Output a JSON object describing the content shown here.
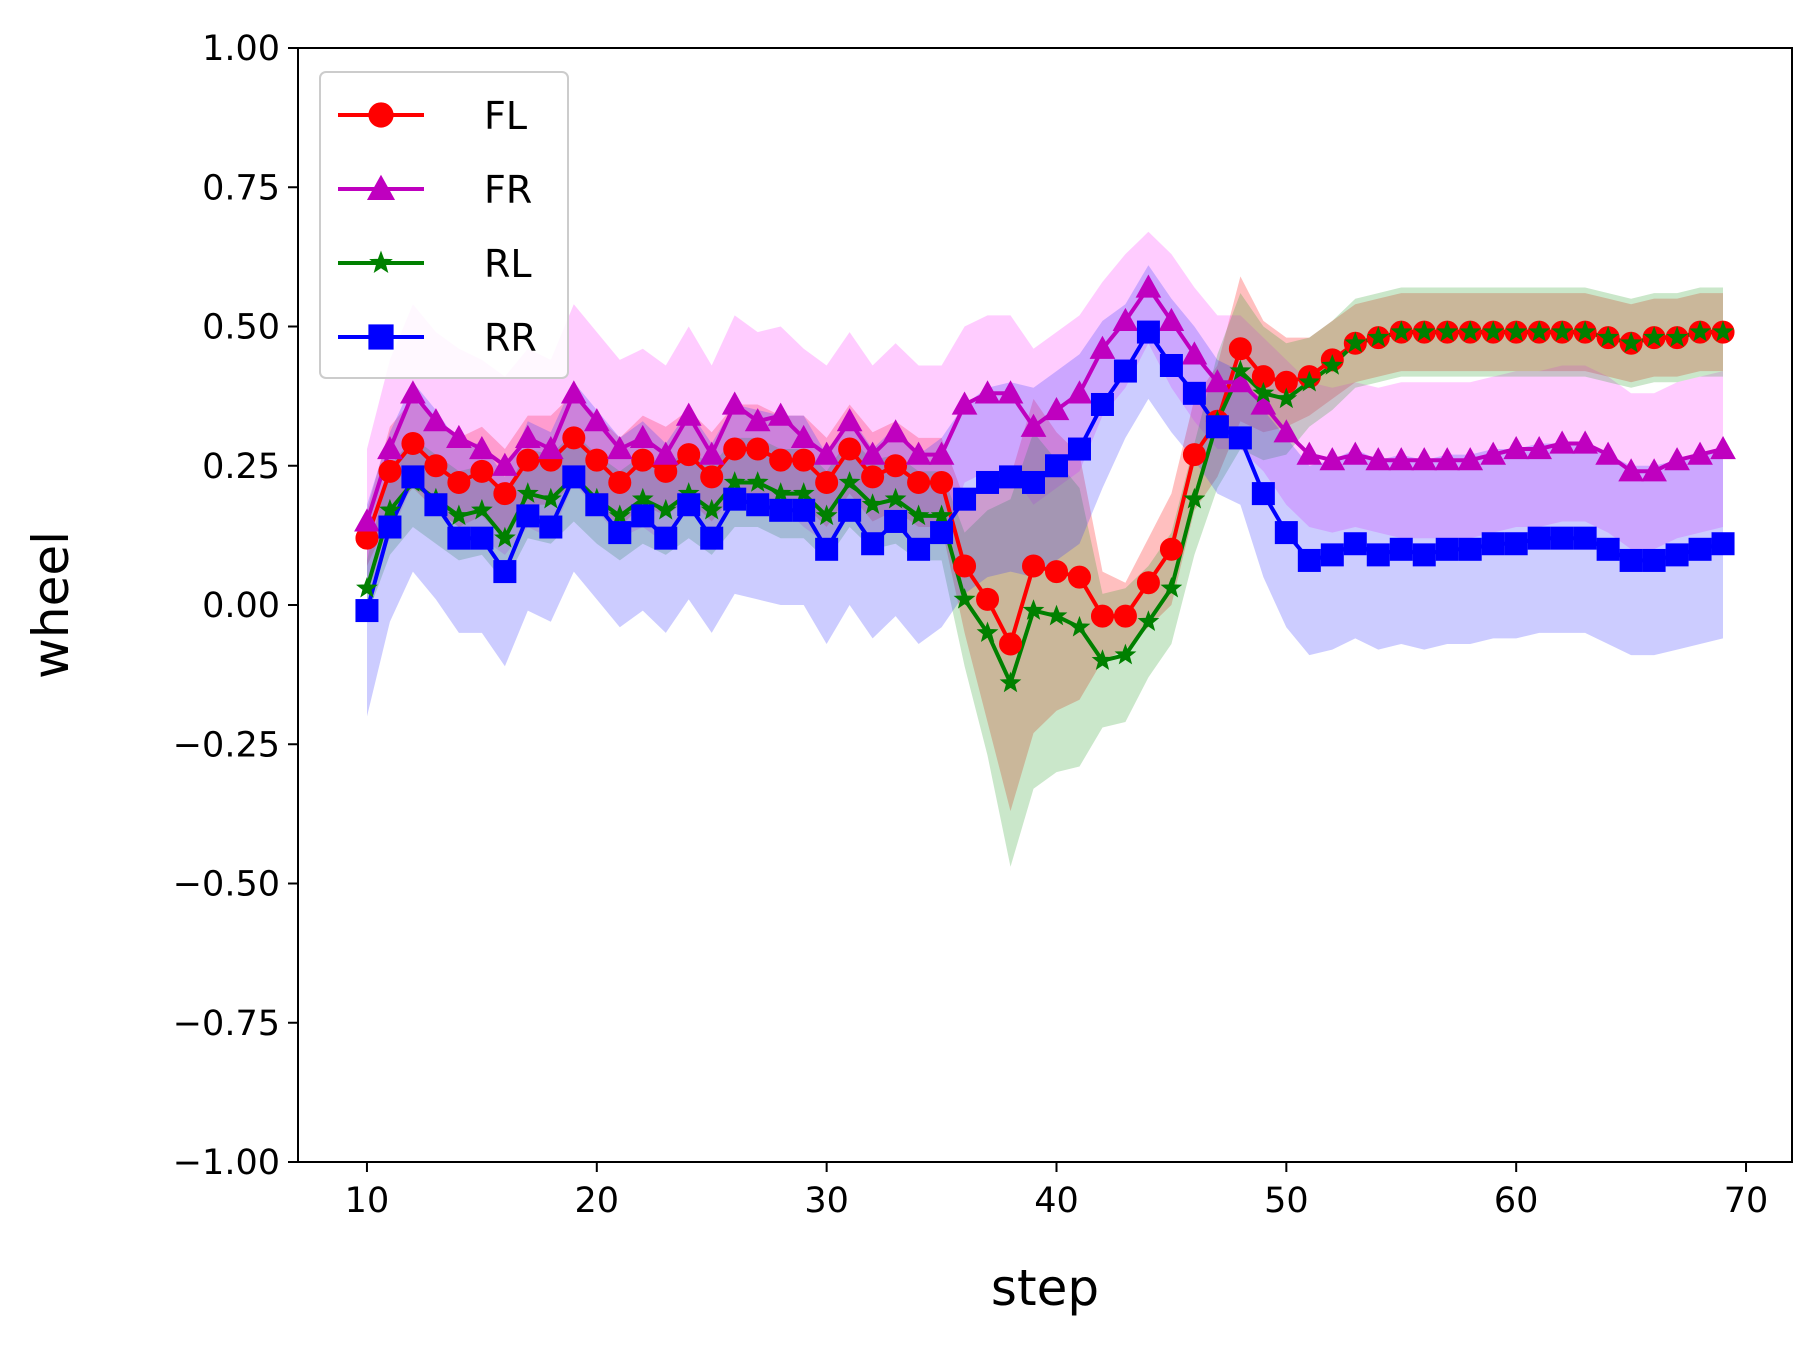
{
  "chart_data": {
    "type": "line",
    "title": "",
    "xlabel": "step",
    "ylabel": "wheel",
    "xlim": [
      7,
      72
    ],
    "ylim": [
      -1.0,
      1.0
    ],
    "x_ticks": [
      10,
      20,
      30,
      40,
      50,
      60,
      70
    ],
    "x_tick_labels": [
      "10",
      "20",
      "30",
      "40",
      "50",
      "60",
      "70"
    ],
    "y_ticks": [
      -1.0,
      -0.75,
      -0.5,
      -0.25,
      0.0,
      0.25,
      0.5,
      0.75,
      1.0
    ],
    "y_tick_labels": [
      "−1.00",
      "−0.75",
      "−0.50",
      "−0.25",
      "0.00",
      "0.25",
      "0.50",
      "0.75",
      "1.00"
    ],
    "grid": false,
    "legend_position": "top-left",
    "x": [
      10,
      11,
      12,
      13,
      14,
      15,
      16,
      17,
      18,
      19,
      20,
      21,
      22,
      23,
      24,
      25,
      26,
      27,
      28,
      29,
      30,
      31,
      32,
      33,
      34,
      35,
      36,
      37,
      38,
      39,
      40,
      41,
      42,
      43,
      44,
      45,
      46,
      47,
      48,
      49,
      50,
      51,
      52,
      53,
      54,
      55,
      56,
      57,
      58,
      59,
      60,
      61,
      62,
      63,
      64,
      65,
      66,
      67,
      68,
      69
    ],
    "series": [
      {
        "name": "FL",
        "color": "#ff0000",
        "marker": "circle",
        "values": [
          0.12,
          0.24,
          0.29,
          0.25,
          0.22,
          0.24,
          0.2,
          0.26,
          0.26,
          0.3,
          0.26,
          0.22,
          0.26,
          0.24,
          0.27,
          0.23,
          0.28,
          0.28,
          0.26,
          0.26,
          0.22,
          0.28,
          0.23,
          0.25,
          0.22,
          0.22,
          0.07,
          0.01,
          -0.07,
          0.07,
          0.06,
          0.05,
          -0.02,
          -0.02,
          0.04,
          0.1,
          0.27,
          0.33,
          0.46,
          0.41,
          0.4,
          0.41,
          0.44,
          0.47,
          0.48,
          0.49,
          0.49,
          0.49,
          0.49,
          0.49,
          0.49,
          0.49,
          0.49,
          0.49,
          0.48,
          0.47,
          0.48,
          0.48,
          0.49,
          0.49
        ],
        "band_halfwidth": [
          0.05,
          0.08,
          0.08,
          0.08,
          0.08,
          0.08,
          0.08,
          0.08,
          0.08,
          0.08,
          0.08,
          0.08,
          0.08,
          0.08,
          0.08,
          0.08,
          0.08,
          0.08,
          0.08,
          0.08,
          0.08,
          0.08,
          0.08,
          0.08,
          0.08,
          0.08,
          0.12,
          0.22,
          0.3,
          0.3,
          0.25,
          0.22,
          0.08,
          0.06,
          0.08,
          0.1,
          0.1,
          0.1,
          0.13,
          0.1,
          0.08,
          0.07,
          0.07,
          0.07,
          0.07,
          0.07,
          0.07,
          0.07,
          0.07,
          0.07,
          0.07,
          0.07,
          0.07,
          0.07,
          0.07,
          0.07,
          0.07,
          0.07,
          0.07,
          0.07
        ]
      },
      {
        "name": "FR",
        "color": "#bf00bf",
        "marker": "triangle",
        "values": [
          0.15,
          0.28,
          0.38,
          0.33,
          0.3,
          0.28,
          0.25,
          0.3,
          0.28,
          0.38,
          0.33,
          0.28,
          0.3,
          0.27,
          0.34,
          0.27,
          0.36,
          0.33,
          0.34,
          0.3,
          0.27,
          0.33,
          0.27,
          0.31,
          0.27,
          0.27,
          0.36,
          0.38,
          0.38,
          0.32,
          0.35,
          0.38,
          0.46,
          0.51,
          0.57,
          0.51,
          0.45,
          0.4,
          0.4,
          0.36,
          0.31,
          0.27,
          0.26,
          0.27,
          0.26,
          0.26,
          0.26,
          0.26,
          0.26,
          0.27,
          0.28,
          0.28,
          0.29,
          0.29,
          0.27,
          0.24,
          0.24,
          0.26,
          0.27,
          0.28
        ],
        "band_halfwidth": [
          0.13,
          0.16,
          0.16,
          0.16,
          0.16,
          0.16,
          0.16,
          0.16,
          0.16,
          0.16,
          0.16,
          0.16,
          0.16,
          0.16,
          0.16,
          0.16,
          0.16,
          0.16,
          0.16,
          0.16,
          0.16,
          0.16,
          0.16,
          0.16,
          0.16,
          0.16,
          0.14,
          0.14,
          0.14,
          0.14,
          0.14,
          0.14,
          0.12,
          0.12,
          0.1,
          0.12,
          0.12,
          0.12,
          0.12,
          0.12,
          0.13,
          0.13,
          0.13,
          0.13,
          0.13,
          0.14,
          0.14,
          0.14,
          0.14,
          0.14,
          0.14,
          0.14,
          0.14,
          0.14,
          0.14,
          0.14,
          0.14,
          0.14,
          0.14,
          0.14
        ]
      },
      {
        "name": "RL",
        "color": "#008000",
        "marker": "star",
        "values": [
          0.03,
          0.17,
          0.22,
          0.19,
          0.16,
          0.17,
          0.12,
          0.2,
          0.19,
          0.23,
          0.19,
          0.16,
          0.19,
          0.17,
          0.2,
          0.17,
          0.22,
          0.22,
          0.2,
          0.2,
          0.16,
          0.22,
          0.18,
          0.19,
          0.16,
          0.16,
          0.01,
          -0.05,
          -0.14,
          -0.01,
          -0.02,
          -0.04,
          -0.1,
          -0.09,
          -0.03,
          0.03,
          0.19,
          0.33,
          0.42,
          0.38,
          0.37,
          0.4,
          0.43,
          0.47,
          0.48,
          0.49,
          0.49,
          0.49,
          0.49,
          0.49,
          0.49,
          0.49,
          0.49,
          0.49,
          0.48,
          0.47,
          0.48,
          0.48,
          0.49,
          0.49
        ],
        "band_halfwidth": [
          0.05,
          0.08,
          0.08,
          0.08,
          0.08,
          0.08,
          0.08,
          0.08,
          0.08,
          0.08,
          0.08,
          0.08,
          0.08,
          0.08,
          0.08,
          0.08,
          0.08,
          0.08,
          0.08,
          0.08,
          0.08,
          0.08,
          0.08,
          0.08,
          0.08,
          0.08,
          0.12,
          0.22,
          0.33,
          0.32,
          0.28,
          0.25,
          0.12,
          0.12,
          0.1,
          0.1,
          0.1,
          0.12,
          0.14,
          0.12,
          0.1,
          0.08,
          0.08,
          0.08,
          0.08,
          0.08,
          0.08,
          0.08,
          0.08,
          0.08,
          0.08,
          0.08,
          0.08,
          0.08,
          0.08,
          0.08,
          0.08,
          0.08,
          0.08,
          0.08
        ]
      },
      {
        "name": "RR",
        "color": "#0000ff",
        "marker": "square",
        "values": [
          -0.01,
          0.14,
          0.23,
          0.18,
          0.12,
          0.12,
          0.06,
          0.16,
          0.14,
          0.23,
          0.18,
          0.13,
          0.16,
          0.12,
          0.18,
          0.12,
          0.19,
          0.18,
          0.17,
          0.17,
          0.1,
          0.17,
          0.11,
          0.15,
          0.1,
          0.13,
          0.19,
          0.22,
          0.23,
          0.22,
          0.25,
          0.28,
          0.36,
          0.42,
          0.49,
          0.43,
          0.38,
          0.32,
          0.3,
          0.2,
          0.13,
          0.08,
          0.09,
          0.11,
          0.09,
          0.1,
          0.09,
          0.1,
          0.1,
          0.11,
          0.11,
          0.12,
          0.12,
          0.12,
          0.1,
          0.08,
          0.08,
          0.09,
          0.1,
          0.11
        ],
        "band_halfwidth": [
          0.19,
          0.17,
          0.17,
          0.17,
          0.17,
          0.17,
          0.17,
          0.17,
          0.17,
          0.17,
          0.17,
          0.17,
          0.17,
          0.17,
          0.17,
          0.17,
          0.17,
          0.17,
          0.17,
          0.17,
          0.17,
          0.17,
          0.17,
          0.17,
          0.17,
          0.17,
          0.17,
          0.17,
          0.17,
          0.17,
          0.17,
          0.17,
          0.15,
          0.12,
          0.12,
          0.12,
          0.12,
          0.12,
          0.12,
          0.15,
          0.17,
          0.17,
          0.17,
          0.17,
          0.17,
          0.17,
          0.17,
          0.17,
          0.17,
          0.17,
          0.17,
          0.17,
          0.17,
          0.17,
          0.17,
          0.17,
          0.17,
          0.17,
          0.17,
          0.17
        ]
      }
    ],
    "band_colors": {
      "FL": "#ff0000",
      "FR": "#ff33ff",
      "RL": "#2ca02c",
      "RR": "#3333ff"
    }
  }
}
